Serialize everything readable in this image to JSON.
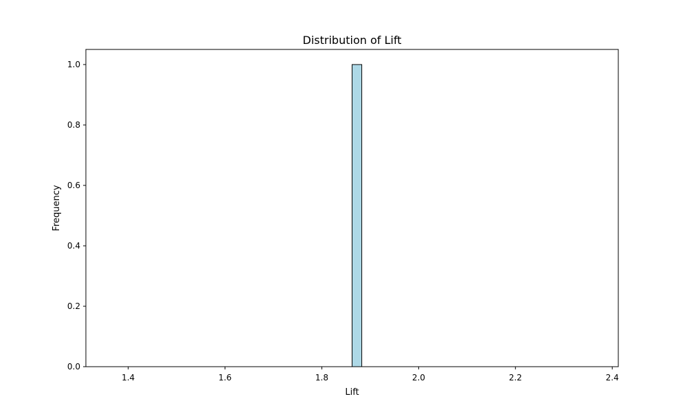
{
  "chart_data": {
    "type": "bar",
    "title": "Distribution of Lift",
    "xlabel": "Lift",
    "ylabel": "Frequency",
    "xlim": [
      1.3125,
      2.4125
    ],
    "ylim": [
      0.0,
      1.05
    ],
    "xticks": [
      1.4,
      1.6,
      1.8,
      2.0,
      2.2,
      2.4
    ],
    "xtick_labels": [
      "1.4",
      "1.6",
      "1.8",
      "2.0",
      "2.2",
      "2.4"
    ],
    "yticks": [
      0.0,
      0.2,
      0.4,
      0.6,
      0.8,
      1.0
    ],
    "ytick_labels": [
      "0.0",
      "0.2",
      "0.4",
      "0.6",
      "0.8",
      "1.0"
    ],
    "bins": {
      "start": 1.3625,
      "end": 2.3625,
      "count": 50
    },
    "nonzero_bins": [
      {
        "x0": 1.8625,
        "x1": 1.8825,
        "value": 1
      }
    ],
    "bar_color": "#add8e6",
    "bar_edge_color": "#000000",
    "grid": false,
    "legend": false
  }
}
